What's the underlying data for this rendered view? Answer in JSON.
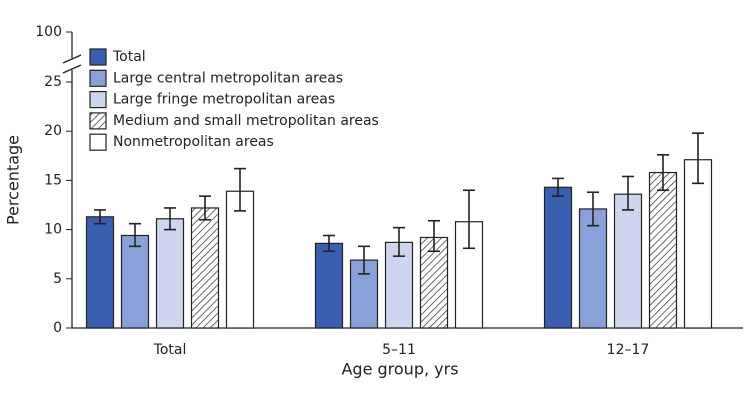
{
  "chart_data": {
    "type": "bar",
    "x_label": "Age group, yrs",
    "y_label": "Percentage",
    "categories": [
      "Total",
      "5–11",
      "12–17"
    ],
    "ylim": [
      0,
      100
    ],
    "yticks": [
      0,
      5,
      10,
      15,
      20,
      25,
      100
    ],
    "axis_break": true,
    "series": [
      {
        "name": "Total",
        "color": "#3a5fb0",
        "values": [
          11.3,
          8.6,
          14.3
        ],
        "ci_low": [
          10.6,
          7.8,
          13.4
        ],
        "ci_high": [
          12.0,
          9.4,
          15.2
        ]
      },
      {
        "name": "Large central metropolitan areas",
        "color": "#8aa0d8",
        "values": [
          9.4,
          6.9,
          12.1
        ],
        "ci_low": [
          8.3,
          5.5,
          10.4
        ],
        "ci_high": [
          10.6,
          8.3,
          13.8
        ]
      },
      {
        "name": "Large fringe metropolitan areas",
        "color": "#cdd6ee",
        "values": [
          11.1,
          8.7,
          13.6
        ],
        "ci_low": [
          10.0,
          7.3,
          12.0
        ],
        "ci_high": [
          12.2,
          10.2,
          15.4
        ]
      },
      {
        "name": "Medium and small metropolitan areas",
        "color": "#ffffff",
        "pattern": "hatch",
        "values": [
          12.2,
          9.2,
          15.8
        ],
        "ci_low": [
          11.0,
          7.8,
          14.0
        ],
        "ci_high": [
          13.4,
          10.9,
          17.6
        ]
      },
      {
        "name": "Nonmetropolitan areas",
        "color": "#ffffff",
        "values": [
          13.9,
          10.8,
          17.1
        ],
        "ci_low": [
          11.9,
          8.1,
          14.7
        ],
        "ci_high": [
          16.2,
          14.0,
          19.8
        ]
      }
    ]
  }
}
